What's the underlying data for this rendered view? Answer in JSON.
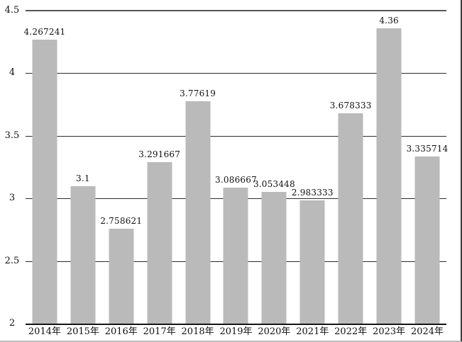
{
  "chart_data": {
    "type": "bar",
    "title": "",
    "xlabel": "",
    "ylabel": "",
    "categories": [
      "2014年",
      "2015年",
      "2016年",
      "2017年",
      "2018年",
      "2019年",
      "2020年",
      "2021年",
      "2022年",
      "2023年",
      "2024年"
    ],
    "values": [
      4.267241,
      3.1,
      2.758621,
      3.291667,
      3.77619,
      3.086667,
      3.053448,
      2.983333,
      3.678333,
      4.36,
      3.335714
    ],
    "value_labels": [
      "4.267241",
      "3.1",
      "2.758621",
      "3.291667",
      "3.77619",
      "3.086667",
      "3.053448",
      "2.983333",
      "3.678333",
      "4.36",
      "3.335714"
    ],
    "ylim": [
      2,
      4.5
    ],
    "yticks": [
      2,
      2.5,
      3,
      3.5,
      4,
      4.5
    ],
    "ytick_labels": [
      "2",
      "2.5",
      "3",
      "3.5",
      "4",
      "4.5"
    ],
    "grid": true,
    "legend": false,
    "colors": {
      "bar": "#bababa",
      "gridline": "#2b2b2b",
      "top_gridline": "#565656",
      "axis_line": "#141414",
      "text": "#101010",
      "background": "#ffffff"
    }
  }
}
